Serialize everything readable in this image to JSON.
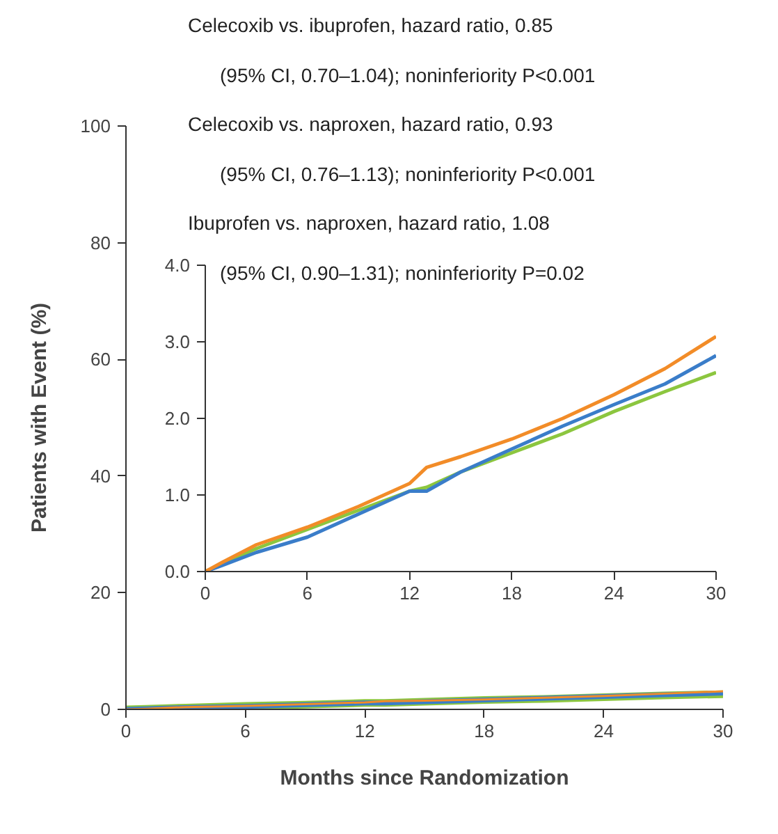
{
  "chart_data": [
    {
      "type": "line",
      "xlabel": "Months since Randomization",
      "ylabel": "Patients with Event (%)",
      "x": [
        0,
        1,
        3,
        6,
        9,
        12,
        13,
        15,
        18,
        21,
        24,
        27,
        30
      ],
      "xlim": [
        0,
        30
      ],
      "ylim": [
        0,
        100
      ],
      "xticks": [
        0,
        6,
        12,
        18,
        24,
        30
      ],
      "yticks": [
        0,
        20,
        40,
        60,
        80,
        100
      ],
      "grid": false,
      "series": [
        {
          "color": "#8cc63f",
          "values": [
            0,
            0.1,
            0.3,
            0.6,
            0.8,
            1.1,
            1.1,
            1.3,
            1.6,
            1.8,
            2.1,
            2.4,
            2.6
          ]
        },
        {
          "color": "#3a7dc9",
          "values": [
            0,
            0.1,
            0.3,
            0.5,
            0.8,
            1.1,
            1.1,
            1.3,
            1.6,
            1.9,
            2.2,
            2.5,
            2.8
          ]
        },
        {
          "color": "#f28c28",
          "values": [
            0,
            0.1,
            0.4,
            0.6,
            0.9,
            1.2,
            1.4,
            1.5,
            1.7,
            2.0,
            2.3,
            2.7,
            3.1
          ]
        }
      ],
      "annotations": [
        "Celecoxib vs. ibuprofen, hazard ratio, 0.85",
        "(95% CI, 0.70–1.04); noninferiority P<0.001",
        "Celecoxib vs. naproxen, hazard ratio, 0.93",
        "(95% CI, 0.76–1.13); noninferiority P<0.001",
        "Ibuprofen vs. naproxen, hazard ratio, 1.08",
        "(95% CI, 0.90–1.31); noninferiority P=0.02"
      ]
    },
    {
      "type": "line",
      "x": [
        0,
        1,
        3,
        6,
        9,
        12,
        13,
        15,
        18,
        21,
        24,
        27,
        30
      ],
      "xlim": [
        0,
        30
      ],
      "ylim": [
        0,
        4
      ],
      "xticks": [
        0,
        6,
        12,
        18,
        24,
        30
      ],
      "yticks": [
        {
          "value": 0,
          "label": "0.0"
        },
        {
          "value": 1,
          "label": "1.0"
        },
        {
          "value": 2,
          "label": "2.0"
        },
        {
          "value": 3,
          "label": "3.0"
        },
        {
          "value": 4,
          "label": "4.0"
        }
      ],
      "grid": false,
      "series": [
        {
          "color": "#8cc63f",
          "values": [
            0,
            0.1,
            0.3,
            0.55,
            0.8,
            1.05,
            1.1,
            1.3,
            1.55,
            1.8,
            2.09,
            2.35,
            2.6
          ]
        },
        {
          "color": "#3a7dc9",
          "values": [
            0,
            0.08,
            0.25,
            0.45,
            0.75,
            1.05,
            1.05,
            1.3,
            1.6,
            1.9,
            2.18,
            2.45,
            2.82
          ]
        },
        {
          "color": "#f28c28",
          "values": [
            0,
            0.12,
            0.35,
            0.58,
            0.85,
            1.15,
            1.36,
            1.5,
            1.73,
            2.0,
            2.31,
            2.65,
            3.07
          ]
        }
      ]
    }
  ]
}
